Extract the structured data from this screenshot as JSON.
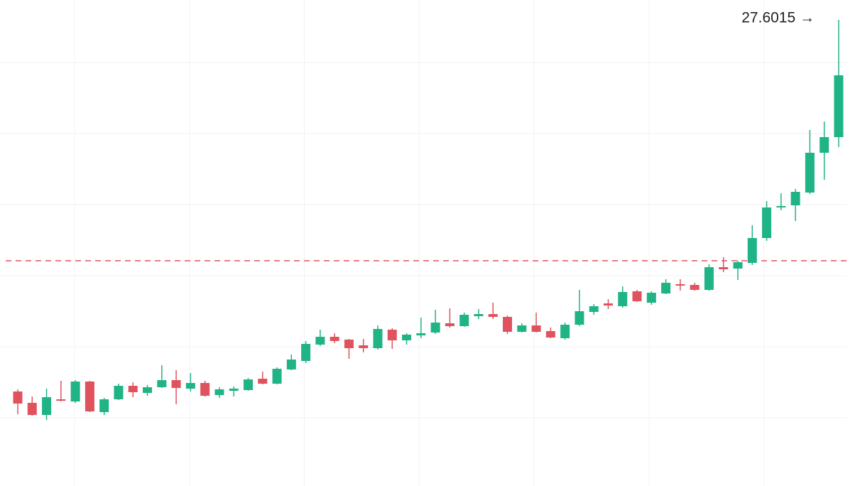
{
  "chart_data": {
    "type": "candlestick",
    "open": [
      22.37,
      22.21,
      22.04,
      22.26,
      22.23,
      22.51,
      22.08,
      22.26,
      22.45,
      22.35,
      22.43,
      22.53,
      22.41,
      22.49,
      22.32,
      22.38,
      22.39,
      22.55,
      22.48,
      22.68,
      22.8,
      23.03,
      23.14,
      23.1,
      23.02,
      22.98,
      23.24,
      23.09,
      23.16,
      23.2,
      23.33,
      23.29,
      23.43,
      23.46,
      23.42,
      23.21,
      23.3,
      23.22,
      23.12,
      23.31,
      23.49,
      23.61,
      23.57,
      23.78,
      23.62,
      23.75,
      23.88,
      23.87,
      23.8,
      24.12,
      24.1,
      24.18,
      24.53,
      24.96,
      24.99,
      25.17,
      25.73,
      25.95
    ],
    "high": [
      22.4,
      22.3,
      22.41,
      22.52,
      22.53,
      22.52,
      22.28,
      22.48,
      22.5,
      22.46,
      22.74,
      22.67,
      22.63,
      22.52,
      22.43,
      22.44,
      22.56,
      22.65,
      22.71,
      22.89,
      23.08,
      23.24,
      23.19,
      23.11,
      23.11,
      23.3,
      23.26,
      23.19,
      23.41,
      23.52,
      23.54,
      23.48,
      23.53,
      23.62,
      23.44,
      23.33,
      23.48,
      23.27,
      23.34,
      23.8,
      23.6,
      23.67,
      23.85,
      23.8,
      23.78,
      23.95,
      23.95,
      23.9,
      24.16,
      24.26,
      24.21,
      24.71,
      25.05,
      25.16,
      25.22,
      26.05,
      26.17,
      27.6015
    ],
    "low": [
      22.05,
      22.03,
      21.97,
      22.23,
      22.21,
      22.08,
      22.04,
      22.25,
      22.29,
      22.31,
      22.42,
      22.19,
      22.37,
      22.3,
      22.28,
      22.3,
      22.38,
      22.47,
      22.47,
      22.67,
      22.77,
      23.01,
      23.05,
      22.83,
      22.92,
      22.96,
      22.97,
      23.03,
      23.12,
      23.18,
      23.27,
      23.28,
      23.39,
      23.39,
      23.18,
      23.2,
      23.2,
      23.12,
      23.1,
      23.29,
      23.45,
      23.53,
      23.55,
      23.63,
      23.59,
      23.74,
      23.79,
      23.79,
      23.79,
      24.05,
      23.94,
      24.15,
      24.49,
      24.92,
      24.77,
      25.15,
      25.35,
      25.81
    ],
    "close": [
      22.2,
      22.04,
      22.29,
      22.24,
      22.51,
      22.09,
      22.26,
      22.45,
      22.36,
      22.43,
      22.53,
      22.42,
      22.49,
      22.31,
      22.4,
      22.41,
      22.54,
      22.48,
      22.69,
      22.82,
      23.04,
      23.14,
      23.08,
      22.98,
      22.98,
      23.25,
      23.09,
      23.17,
      23.19,
      23.34,
      23.29,
      23.45,
      23.46,
      23.42,
      23.21,
      23.3,
      23.21,
      23.13,
      23.31,
      23.5,
      23.57,
      23.58,
      23.77,
      23.64,
      23.76,
      23.9,
      23.86,
      23.8,
      24.12,
      24.09,
      24.19,
      24.53,
      24.96,
      24.98,
      25.18,
      25.73,
      25.95,
      26.82
    ],
    "up_color": "#1fb386",
    "down_color": "#e0525d",
    "ylim": [
      21.04,
      27.88
    ],
    "yticks": [
      22,
      23,
      24,
      25,
      26,
      27
    ],
    "grid": true,
    "reference_line": {
      "value": 24.21,
      "color": "#e0525d"
    },
    "last_label": {
      "value": 27.6015,
      "label": "27.6015 →"
    }
  }
}
